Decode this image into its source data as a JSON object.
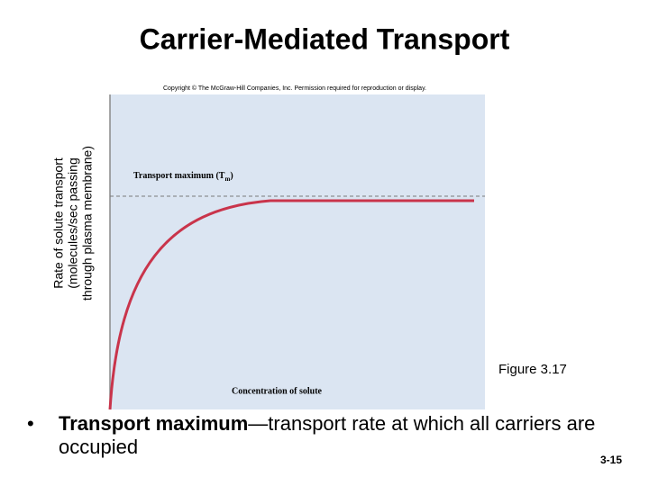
{
  "title": "Carrier-Mediated Transport",
  "figure": {
    "copyright": "Copyright © The McGraw-Hill Companies, Inc. Permission required for reproduction or display.",
    "y_label": [
      "Rate of solute transport",
      "(molecules/sec passing",
      "through plasma membrane)"
    ],
    "annotation": {
      "text": "Transport maximum (T",
      "subscript": "m",
      "suffix": ")"
    },
    "x_label": "Concentration of solute",
    "caption": "Figure 3.17"
  },
  "bullet": {
    "bold": "Transport maximum",
    "text": "—transport rate at which all carriers are occupied"
  },
  "page_number": "3-15"
}
